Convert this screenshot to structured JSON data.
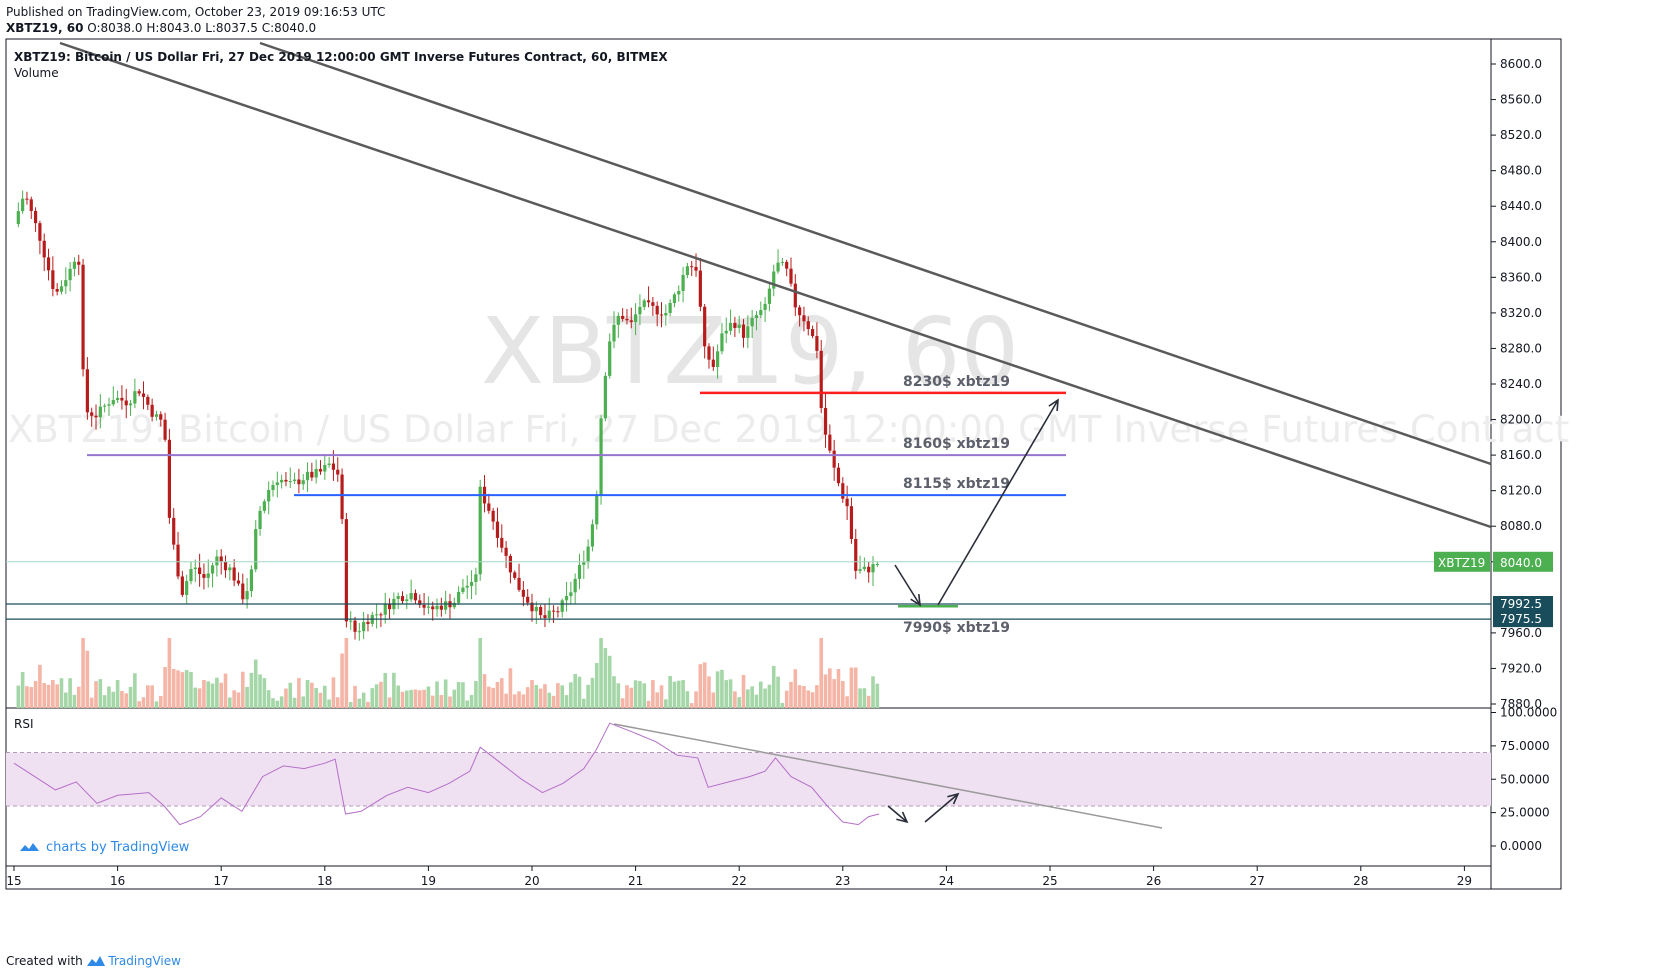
{
  "header": {
    "published": "Published on TradingView.com, October 23, 2019 09:16:53 UTC",
    "symbol_line": "XBTZ19, 60",
    "ohlc": "O:8038.0 H:8043.0 L:8037.5 C:8040.0"
  },
  "legend": {
    "title": "XBTZ19: Bitcoin / US Dollar Fri, 27 Dec 2019 12:00:00 GMT Inverse Futures Contract, 60, BITMEX",
    "volume": "Volume",
    "rsi": "RSI"
  },
  "watermark": {
    "big": "XBTZ19, 60",
    "small": "XBTZ19: Bitcoin / US Dollar Fri, 27 Dec 2019 12:00:00 GMT Inverse Futures Contract"
  },
  "footer": {
    "created": "Created with",
    "brand": "TradingView",
    "charts_by": "charts by TradingView"
  },
  "colors": {
    "up": "#4caf50",
    "down": "#b71c1c",
    "vol_up": "#a5d6a7",
    "vol_down": "#f4b5a6",
    "trendline": "#5a5a5a",
    "rsi_line": "#b46fc8",
    "rsi_band": "#f0e1f2",
    "line_8230": "#ff1f1f",
    "line_8160": "#9575cd",
    "line_8115": "#2962ff",
    "line_7990": "#4caf50",
    "tag_price": "#4caf50",
    "tag_levels": "#1a4d5c"
  },
  "chart_data": {
    "type": "candlestick",
    "symbol": "XBTZ19",
    "interval": "60",
    "exchange": "BITMEX",
    "x_ticks": [
      "15",
      "16",
      "17",
      "18",
      "19",
      "20",
      "21",
      "22",
      "23",
      "24",
      "25",
      "26",
      "27",
      "28",
      "29"
    ],
    "y_ticks": [
      7880,
      7920,
      7960,
      8000,
      8040,
      8080,
      8120,
      8160,
      8200,
      8240,
      8280,
      8320,
      8360,
      8400,
      8440,
      8480,
      8520,
      8560,
      8600
    ],
    "y_tick_labels": [
      "7880.0",
      "7920.0",
      "7960.0",
      "8000.0",
      "8040.0",
      "8080.0",
      "8120.0",
      "8160.0",
      "8200.0",
      "8240.0",
      "8280.0",
      "8320.0",
      "8360.0",
      "8400.0",
      "8440.0",
      "8480.0",
      "8520.0",
      "8560.0",
      "8600.0"
    ],
    "ylim": [
      7870,
      8630
    ],
    "close_path": [
      [
        15.0,
        8420
      ],
      [
        15.1,
        8455
      ],
      [
        15.25,
        8405
      ],
      [
        15.4,
        8340
      ],
      [
        15.55,
        8370
      ],
      [
        15.62,
        8395
      ],
      [
        15.68,
        8210
      ],
      [
        15.8,
        8205
      ],
      [
        15.95,
        8225
      ],
      [
        16.1,
        8220
      ],
      [
        16.2,
        8235
      ],
      [
        16.35,
        8205
      ],
      [
        16.45,
        8195
      ],
      [
        16.5,
        8090
      ],
      [
        16.55,
        8050
      ],
      [
        16.62,
        8005
      ],
      [
        16.72,
        8035
      ],
      [
        16.85,
        8020
      ],
      [
        16.95,
        8045
      ],
      [
        17.1,
        8030
      ],
      [
        17.2,
        8000
      ],
      [
        17.28,
        8015
      ],
      [
        17.35,
        8090
      ],
      [
        17.45,
        8120
      ],
      [
        17.55,
        8135
      ],
      [
        17.65,
        8125
      ],
      [
        17.8,
        8135
      ],
      [
        17.95,
        8140
      ],
      [
        18.05,
        8150
      ],
      [
        18.15,
        8135
      ],
      [
        18.2,
        7980
      ],
      [
        18.3,
        7960
      ],
      [
        18.4,
        7975
      ],
      [
        18.55,
        7985
      ],
      [
        18.7,
        8000
      ],
      [
        18.85,
        8005
      ],
      [
        19.0,
        7985
      ],
      [
        19.1,
        7990
      ],
      [
        19.25,
        7995
      ],
      [
        19.35,
        8015
      ],
      [
        19.45,
        8010
      ],
      [
        19.5,
        8120
      ],
      [
        19.6,
        8095
      ],
      [
        19.75,
        8045
      ],
      [
        19.85,
        8015
      ],
      [
        20.0,
        7990
      ],
      [
        20.1,
        7975
      ],
      [
        20.25,
        7985
      ],
      [
        20.35,
        8000
      ],
      [
        20.45,
        8030
      ],
      [
        20.55,
        8060
      ],
      [
        20.62,
        8110
      ],
      [
        20.68,
        8230
      ],
      [
        20.75,
        8290
      ],
      [
        20.85,
        8320
      ],
      [
        20.95,
        8305
      ],
      [
        21.05,
        8330
      ],
      [
        21.15,
        8325
      ],
      [
        21.3,
        8320
      ],
      [
        21.42,
        8350
      ],
      [
        21.5,
        8375
      ],
      [
        21.6,
        8370
      ],
      [
        21.65,
        8280
      ],
      [
        21.75,
        8260
      ],
      [
        21.85,
        8300
      ],
      [
        21.95,
        8310
      ],
      [
        22.05,
        8295
      ],
      [
        22.15,
        8315
      ],
      [
        22.25,
        8325
      ],
      [
        22.35,
        8375
      ],
      [
        22.45,
        8370
      ],
      [
        22.55,
        8325
      ],
      [
        22.65,
        8310
      ],
      [
        22.75,
        8280
      ],
      [
        22.8,
        8200
      ],
      [
        22.9,
        8150
      ],
      [
        22.98,
        8120
      ],
      [
        23.05,
        8100
      ],
      [
        23.12,
        8030
      ],
      [
        23.2,
        8030
      ],
      [
        23.3,
        8035
      ],
      [
        23.35,
        8040
      ]
    ],
    "annotations": [
      {
        "label": "8230$ xbtz19",
        "price": 8230
      },
      {
        "label": "8160$ xbtz19",
        "price": 8160
      },
      {
        "label": "8115$ xbtz19",
        "price": 8115
      },
      {
        "label": "7990$ xbtz19",
        "price": 7990
      }
    ],
    "price_tags": {
      "symbol": "XBTZ19",
      "last": "8040.0",
      "level_1": "7992.5",
      "level_2": "7975.5"
    },
    "rsi": {
      "ticks": [
        "100.0000",
        "75.0000",
        "50.0000",
        "25.0000",
        "0.0000"
      ],
      "band": [
        30,
        70
      ],
      "path": [
        [
          15.0,
          62
        ],
        [
          15.2,
          52
        ],
        [
          15.4,
          42
        ],
        [
          15.6,
          48
        ],
        [
          15.8,
          32
        ],
        [
          16.0,
          38
        ],
        [
          16.3,
          40
        ],
        [
          16.45,
          30
        ],
        [
          16.6,
          16
        ],
        [
          16.8,
          22
        ],
        [
          17.0,
          36
        ],
        [
          17.2,
          26
        ],
        [
          17.4,
          52
        ],
        [
          17.6,
          60
        ],
        [
          17.8,
          58
        ],
        [
          18.0,
          62
        ],
        [
          18.1,
          65
        ],
        [
          18.2,
          24
        ],
        [
          18.35,
          26
        ],
        [
          18.6,
          38
        ],
        [
          18.8,
          44
        ],
        [
          19.0,
          40
        ],
        [
          19.2,
          47
        ],
        [
          19.4,
          56
        ],
        [
          19.5,
          74
        ],
        [
          19.7,
          62
        ],
        [
          19.9,
          50
        ],
        [
          20.1,
          40
        ],
        [
          20.3,
          47
        ],
        [
          20.5,
          58
        ],
        [
          20.62,
          72
        ],
        [
          20.75,
          92
        ],
        [
          20.95,
          86
        ],
        [
          21.2,
          78
        ],
        [
          21.4,
          68
        ],
        [
          21.6,
          66
        ],
        [
          21.7,
          44
        ],
        [
          21.9,
          48
        ],
        [
          22.1,
          52
        ],
        [
          22.25,
          56
        ],
        [
          22.35,
          66
        ],
        [
          22.5,
          52
        ],
        [
          22.7,
          44
        ],
        [
          22.85,
          30
        ],
        [
          23.0,
          18
        ],
        [
          23.15,
          16
        ],
        [
          23.25,
          22
        ],
        [
          23.35,
          24
        ]
      ]
    }
  }
}
